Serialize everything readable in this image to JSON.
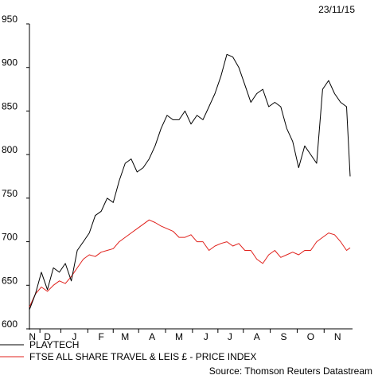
{
  "date_label": "23/11/15",
  "source_label": "Source: Thomson Reuters Datastream",
  "colors": {
    "playtech": "#000000",
    "ftse": "#e0201b",
    "axis": "#000000"
  },
  "chart_data": {
    "type": "line",
    "ylim": [
      600,
      950
    ],
    "yticks": [
      600,
      650,
      700,
      750,
      800,
      850,
      900,
      950
    ],
    "xlim": [
      0,
      54
    ],
    "x_labels": [
      {
        "label": "N",
        "x": 0.5
      },
      {
        "label": "D",
        "x": 3.0
      },
      {
        "label": "J",
        "x": 7.5
      },
      {
        "label": "F",
        "x": 12.0
      },
      {
        "label": "M",
        "x": 16.0
      },
      {
        "label": "A",
        "x": 20.5
      },
      {
        "label": "M",
        "x": 25.0
      },
      {
        "label": "J",
        "x": 29.5
      },
      {
        "label": "J",
        "x": 33.5
      },
      {
        "label": "A",
        "x": 38.0
      },
      {
        "label": "S",
        "x": 42.5
      },
      {
        "label": "O",
        "x": 47.0
      },
      {
        "label": "N",
        "x": 51.5
      }
    ],
    "series": [
      {
        "name": "PLAYTECH",
        "x": [
          0,
          1,
          2,
          3,
          4,
          5,
          6,
          7,
          8,
          9,
          10,
          11,
          12,
          13,
          14,
          15,
          16,
          17,
          18,
          19,
          20,
          21,
          22,
          23,
          24,
          25,
          26,
          27,
          28,
          29,
          30,
          31,
          32,
          33,
          34,
          35,
          36,
          37,
          38,
          39,
          40,
          41,
          42,
          43,
          44,
          45,
          46,
          47,
          48,
          49,
          50,
          51,
          52,
          53,
          53.6
        ],
        "values": [
          622,
          640,
          665,
          645,
          670,
          665,
          675,
          655,
          690,
          700,
          710,
          730,
          735,
          750,
          745,
          770,
          790,
          795,
          780,
          785,
          795,
          810,
          830,
          845,
          840,
          840,
          850,
          835,
          845,
          840,
          855,
          870,
          890,
          915,
          912,
          900,
          880,
          860,
          870,
          875,
          855,
          860,
          855,
          830,
          815,
          785,
          810,
          800,
          790,
          875,
          885,
          870,
          860,
          855,
          775
        ]
      },
      {
        "name": "FTSE ALL SHARE TRAVEL & LEIS £ - PRICE INDEX",
        "x": [
          0,
          1,
          2,
          3,
          4,
          5,
          6,
          7,
          8,
          9,
          10,
          11,
          12,
          13,
          14,
          15,
          16,
          17,
          18,
          19,
          20,
          21,
          22,
          23,
          24,
          25,
          26,
          27,
          28,
          29,
          30,
          31,
          32,
          33,
          34,
          35,
          36,
          37,
          38,
          39,
          40,
          41,
          42,
          43,
          44,
          45,
          46,
          47,
          48,
          49,
          50,
          51,
          52,
          53,
          53.6
        ],
        "values": [
          625,
          640,
          648,
          643,
          650,
          655,
          652,
          660,
          670,
          680,
          685,
          683,
          688,
          690,
          692,
          700,
          705,
          710,
          715,
          720,
          725,
          722,
          718,
          715,
          712,
          705,
          705,
          708,
          700,
          700,
          690,
          695,
          698,
          700,
          695,
          698,
          690,
          690,
          680,
          675,
          685,
          690,
          682,
          685,
          688,
          685,
          690,
          690,
          700,
          705,
          710,
          708,
          700,
          690,
          693
        ]
      }
    ]
  }
}
